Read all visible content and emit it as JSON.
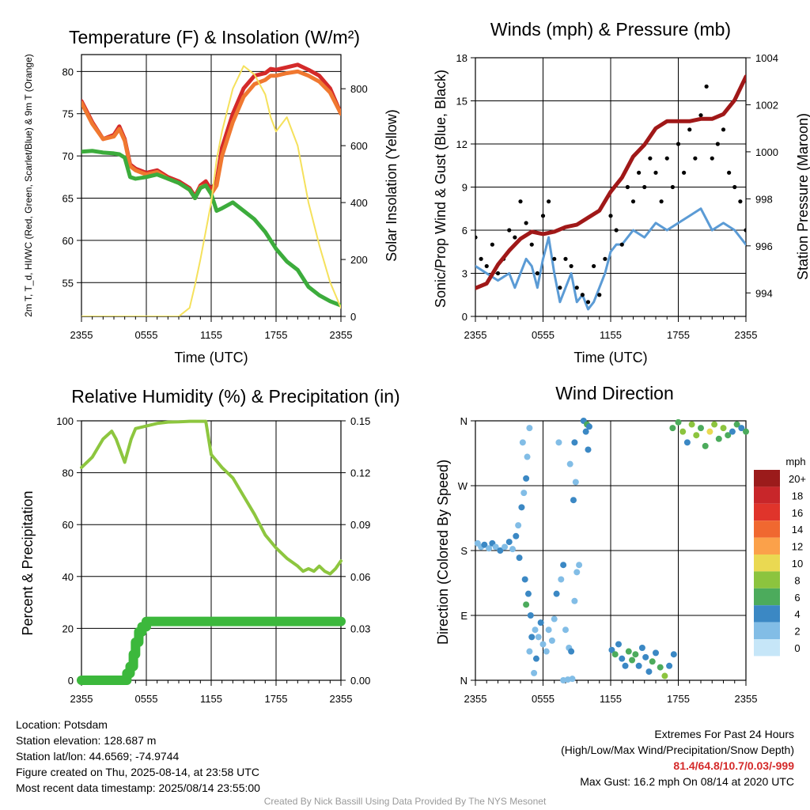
{
  "chart_data": [
    {
      "type": "line",
      "title": "Temperature (F) & Insolation (W/m²)",
      "xlabel": "Time (UTC)",
      "ylabel": "2m T, T_d, HI/WC (Red, Green, Scarlet/Blue) & 9m T (Orange)",
      "y2label": "Solar Insolation (Yellow)",
      "x_ticks": [
        "2355",
        "0555",
        "1155",
        "1755",
        "2355"
      ],
      "ylim": [
        51,
        82
      ],
      "y_ticks": [
        55,
        60,
        65,
        70,
        75,
        80
      ],
      "y2lim": [
        0,
        920
      ],
      "y2_ticks": [
        0,
        200,
        400,
        600,
        800
      ],
      "grid": true,
      "x_hours": [
        0,
        1,
        2,
        3,
        3.5,
        4,
        4.5,
        5,
        6,
        7,
        8,
        9,
        10,
        10.5,
        11,
        11.5,
        12,
        12.5,
        13,
        14,
        15,
        16,
        17,
        17.5,
        18,
        19,
        20,
        21,
        22,
        23,
        24
      ],
      "series": [
        {
          "color": "#d42a2a",
          "values": [
            76.5,
            74,
            72,
            72.5,
            73.5,
            72,
            69,
            68.5,
            68,
            68.3,
            67.5,
            67,
            66.2,
            65.2,
            66.5,
            67,
            66,
            67,
            71,
            75,
            78,
            79.5,
            79.8,
            80.3,
            80.2,
            80.5,
            80.8,
            80.2,
            79.5,
            78,
            75
          ]
        },
        {
          "color": "#f07830",
          "values": [
            76.3,
            73.8,
            72,
            72.3,
            73.2,
            71.8,
            68.8,
            68.3,
            67.8,
            68.1,
            67.3,
            66.8,
            66,
            65,
            66.3,
            66.5,
            65.5,
            66.5,
            70,
            74,
            77,
            78.5,
            79,
            79.5,
            79.5,
            79.8,
            80,
            79.5,
            78.8,
            77.5,
            75
          ]
        },
        {
          "color": "#3cac3c",
          "values": [
            70.5,
            70.6,
            70.4,
            70.3,
            70.2,
            69.8,
            67.5,
            67.3,
            67.5,
            67.8,
            67.3,
            66.8,
            66,
            65,
            66.2,
            66.5,
            65.5,
            63.5,
            63.8,
            64.5,
            63.5,
            62.5,
            61,
            60,
            59,
            57.5,
            56.5,
            54.5,
            53.5,
            52.8,
            52.3
          ]
        },
        {
          "color": "#f5e15c",
          "axis": "right",
          "values": [
            0,
            0,
            0,
            0,
            0,
            0,
            0,
            0,
            0,
            0,
            0,
            0,
            30,
            110,
            200,
            300,
            400,
            550,
            650,
            800,
            880,
            850,
            780,
            700,
            650,
            700,
            600,
            400,
            250,
            120,
            30
          ]
        }
      ]
    },
    {
      "type": "scatter",
      "title": "Winds (mph) & Pressure (mb)",
      "xlabel": "Time (UTC)",
      "ylabel": "Sonic/Prop Wind & Gust (Blue, Black)",
      "y2label": "Station Pressure (Maroon)",
      "x_ticks": [
        "2355",
        "0555",
        "1155",
        "1755",
        "2355"
      ],
      "ylim": [
        0,
        18
      ],
      "y_ticks": [
        0,
        3,
        6,
        9,
        12,
        15,
        18
      ],
      "y2lim": [
        993,
        1004
      ],
      "y2_ticks": [
        994,
        996,
        998,
        1000,
        1002,
        1004
      ],
      "grid": true,
      "series": [
        {
          "color": "#5b9bd5",
          "x_hours": [
            0,
            1,
            2,
            3,
            3.5,
            4,
            4.5,
            5,
            5.5,
            6,
            6.5,
            7,
            7.5,
            8,
            8.5,
            9,
            9.5,
            10,
            10.5,
            11,
            11.5,
            12,
            12.5,
            13,
            14,
            15,
            16,
            17,
            18,
            19,
            20,
            21,
            22,
            23,
            24
          ],
          "values": [
            3.5,
            3,
            2.5,
            3,
            2,
            3,
            4,
            3.5,
            2,
            4,
            5.5,
            3,
            1,
            2,
            3,
            1,
            1.5,
            0.5,
            1,
            2,
            3,
            4.5,
            5,
            5,
            6,
            5.5,
            6.5,
            6,
            6.5,
            7,
            7.5,
            6,
            6.5,
            6,
            5
          ]
        },
        {
          "color": "#000000",
          "x_hours": [
            0,
            0.5,
            1,
            1.5,
            2,
            2.5,
            3,
            3.5,
            4,
            4.5,
            5,
            5.5,
            6,
            6.5,
            7,
            7.5,
            8,
            8.5,
            9,
            9.5,
            10,
            10.5,
            11,
            11.5,
            12,
            12.5,
            13,
            13.5,
            14,
            14.5,
            15,
            15.5,
            16,
            16.5,
            17,
            17.5,
            18,
            18.5,
            19,
            19.5,
            20,
            20.5,
            21,
            21.5,
            22,
            22.5,
            23,
            23.5,
            24
          ],
          "values": [
            5.5,
            4,
            3.5,
            5,
            3,
            4,
            6,
            5.5,
            8,
            6.5,
            5,
            3,
            7,
            8,
            4,
            2,
            4,
            3.5,
            2,
            1.5,
            1,
            3.5,
            1.5,
            4,
            7,
            6,
            5,
            9,
            8,
            10,
            9,
            11,
            10,
            8,
            11,
            9,
            12,
            10,
            13,
            11,
            14,
            16,
            11,
            12,
            13,
            10,
            9,
            8,
            6
          ]
        },
        {
          "color": "#a01818",
          "axis": "right",
          "x_hours": [
            0,
            1,
            2,
            3,
            4,
            5,
            6,
            7,
            8,
            9,
            10,
            11,
            12,
            13,
            14,
            15,
            16,
            17,
            18,
            19,
            20,
            21,
            22,
            23,
            24
          ],
          "values": [
            994.2,
            994.4,
            995.2,
            995.8,
            996.3,
            996.6,
            996.5,
            996.6,
            996.8,
            996.9,
            997.2,
            997.5,
            998.3,
            998.9,
            999.8,
            1000.3,
            1001,
            1001.3,
            1001.3,
            1001.3,
            1001.4,
            1001.4,
            1001.6,
            1002.2,
            1003.2
          ]
        }
      ]
    },
    {
      "type": "line",
      "title": "Relative Humidity (%) & Precipitation (in)",
      "ylabel": "Percent & Precipitation",
      "x_ticks": [
        "2355",
        "0555",
        "1155",
        "1755",
        "2355"
      ],
      "ylim": [
        0,
        100
      ],
      "y_ticks": [
        0,
        20,
        40,
        60,
        80,
        100
      ],
      "y2lim": [
        0,
        0.15
      ],
      "y2_ticks": [
        "0.00",
        "0.03",
        "0.06",
        "0.09",
        "0.12",
        "0.15"
      ],
      "grid": true,
      "series": [
        {
          "color": "#8dc63f",
          "x_hours": [
            0,
            1,
            2,
            2.8,
            3.2,
            4,
            4.6,
            5,
            6,
            7,
            8,
            9,
            10,
            11,
            11.5,
            12,
            13,
            14,
            15,
            16,
            17,
            18,
            19,
            20,
            20.5,
            21,
            21.5,
            22,
            22.5,
            23,
            23.5,
            24
          ],
          "values": [
            82,
            86,
            93,
            96,
            93,
            84,
            93,
            97,
            98,
            99,
            99.5,
            99.6,
            99.8,
            99.8,
            99.8,
            87,
            82,
            78,
            71,
            64,
            56,
            51,
            47,
            44,
            42,
            43,
            42,
            44,
            42,
            41,
            43,
            46
          ]
        },
        {
          "color": "#3cb83c",
          "axis": "right",
          "step": true,
          "x_hours": [
            0,
            1,
            2,
            3,
            4,
            4.2,
            4.5,
            4.8,
            5,
            5.3,
            5.6,
            6,
            24
          ],
          "values": [
            0,
            0,
            0,
            0,
            0,
            0.004,
            0.008,
            0.015,
            0.022,
            0.028,
            0.031,
            0.034,
            0.034
          ]
        }
      ]
    },
    {
      "type": "scatter",
      "title": "Wind Direction",
      "ylabel": "Direction (Colored By Speed)",
      "x_ticks": [
        "2355",
        "0555",
        "1155",
        "1755",
        "2355"
      ],
      "y_ticks": [
        "N",
        "E",
        "S",
        "W",
        "N"
      ],
      "ylim": [
        0,
        360
      ],
      "grid": true,
      "colorbar_title": "mph",
      "colorbar_labels": [
        "20+",
        "18",
        "16",
        "14",
        "12",
        "10",
        "8",
        "6",
        "4",
        "2",
        "0"
      ],
      "colorbar_colors": [
        "#9b1b1b",
        "#c8262a",
        "#e0342b",
        "#f06830",
        "#fba14a",
        "#ead952",
        "#8cc43e",
        "#4cab5c",
        "#3b88c4",
        "#82bde6",
        "#c6e6f8"
      ],
      "points": [
        [
          0.2,
          190,
          2
        ],
        [
          0.5,
          185,
          2
        ],
        [
          0.8,
          188,
          3
        ],
        [
          1.2,
          183,
          2
        ],
        [
          1.5,
          190,
          3
        ],
        [
          1.8,
          185,
          2
        ],
        [
          2.2,
          180,
          3
        ],
        [
          2.6,
          185,
          2
        ],
        [
          3.0,
          192,
          3
        ],
        [
          3.3,
          182,
          2
        ],
        [
          3.6,
          200,
          3
        ],
        [
          3.8,
          215,
          2
        ],
        [
          4.1,
          240,
          3
        ],
        [
          4.3,
          260,
          2
        ],
        [
          4.5,
          280,
          3
        ],
        [
          4.2,
          330,
          2
        ],
        [
          4.6,
          310,
          2
        ],
        [
          4.8,
          350,
          2
        ],
        [
          3.9,
          170,
          3
        ],
        [
          4.4,
          140,
          3
        ],
        [
          4.7,
          120,
          4
        ],
        [
          4.5,
          105,
          6
        ],
        [
          4.9,
          90,
          3
        ],
        [
          5.0,
          60,
          3
        ],
        [
          4.8,
          40,
          2
        ],
        [
          5.2,
          10,
          2
        ],
        [
          5.4,
          30,
          3
        ],
        [
          5.3,
          70,
          2
        ],
        [
          5.6,
          60,
          2
        ],
        [
          5.8,
          80,
          3
        ],
        [
          6.0,
          50,
          2
        ],
        [
          6.3,
          40,
          2
        ],
        [
          6.5,
          70,
          1
        ],
        [
          6.8,
          55,
          2
        ],
        [
          7.0,
          85,
          2
        ],
        [
          7.2,
          120,
          3
        ],
        [
          7.6,
          140,
          2
        ],
        [
          7.8,
          160,
          3
        ],
        [
          8.0,
          70,
          2
        ],
        [
          8.3,
          45,
          2
        ],
        [
          8.5,
          40,
          3
        ],
        [
          7.8,
          0,
          1
        ],
        [
          8.2,
          1,
          1
        ],
        [
          8.6,
          2,
          1
        ],
        [
          8.8,
          110,
          2
        ],
        [
          9.0,
          150,
          2
        ],
        [
          9.2,
          160,
          2
        ],
        [
          8.7,
          250,
          3
        ],
        [
          8.9,
          275,
          2
        ],
        [
          8.4,
          300,
          2
        ],
        [
          8.8,
          330,
          3
        ],
        [
          7.4,
          330,
          2
        ],
        [
          9.6,
          360,
          4
        ],
        [
          9.8,
          345,
          3
        ],
        [
          10.0,
          320,
          4
        ],
        [
          9.9,
          355,
          6
        ],
        [
          10.1,
          352,
          3
        ],
        [
          12.1,
          42,
          4
        ],
        [
          12.4,
          36,
          5
        ],
        [
          12.7,
          50,
          4
        ],
        [
          13.0,
          30,
          3
        ],
        [
          13.3,
          20,
          4
        ],
        [
          13.6,
          40,
          6
        ],
        [
          13.9,
          28,
          5
        ],
        [
          14.2,
          36,
          6
        ],
        [
          14.5,
          20,
          4
        ],
        [
          14.8,
          45,
          3
        ],
        [
          15.1,
          32,
          4
        ],
        [
          15.4,
          12,
          4
        ],
        [
          15.7,
          26,
          6
        ],
        [
          16.0,
          38,
          3
        ],
        [
          16.4,
          18,
          5
        ],
        [
          16.8,
          6,
          7
        ],
        [
          17.2,
          20,
          4
        ],
        [
          17.6,
          36,
          3
        ],
        [
          17.5,
          350,
          5
        ],
        [
          18.0,
          358,
          6
        ],
        [
          18.4,
          345,
          7
        ],
        [
          18.8,
          330,
          4
        ],
        [
          19.2,
          355,
          8
        ],
        [
          19.6,
          340,
          7
        ],
        [
          20.0,
          350,
          6
        ],
        [
          20.4,
          325,
          5
        ],
        [
          20.8,
          345,
          9
        ],
        [
          21.2,
          355,
          8
        ],
        [
          21.6,
          335,
          6
        ],
        [
          22.0,
          350,
          7
        ],
        [
          22.4,
          340,
          5
        ],
        [
          22.8,
          345,
          4
        ],
        [
          23.2,
          355,
          6
        ],
        [
          23.6,
          350,
          4
        ],
        [
          24.0,
          345,
          6
        ]
      ]
    }
  ],
  "info": {
    "location": "Location: Potsdam",
    "elevation": "Station elevation: 128.687 m",
    "latlon": "Station lat/lon: 44.6569; -74.9744",
    "created": "Figure created on Thu, 2025-08-14, at 23:58 UTC",
    "recent": "Most recent data timestamp: 2025/08/14 23:55:00"
  },
  "extremes": {
    "heading": "Extremes For Past 24 Hours",
    "legend": "(High/Low/Max Wind/Precipitation/Snow Depth)",
    "values": "81.4/64.8/10.7/0.03/-999",
    "gust": "Max Gust: 16.2 mph On 08/14 at 2020 UTC"
  },
  "credit": "Created By Nick Bassill Using Data Provided By The NYS Mesonet"
}
